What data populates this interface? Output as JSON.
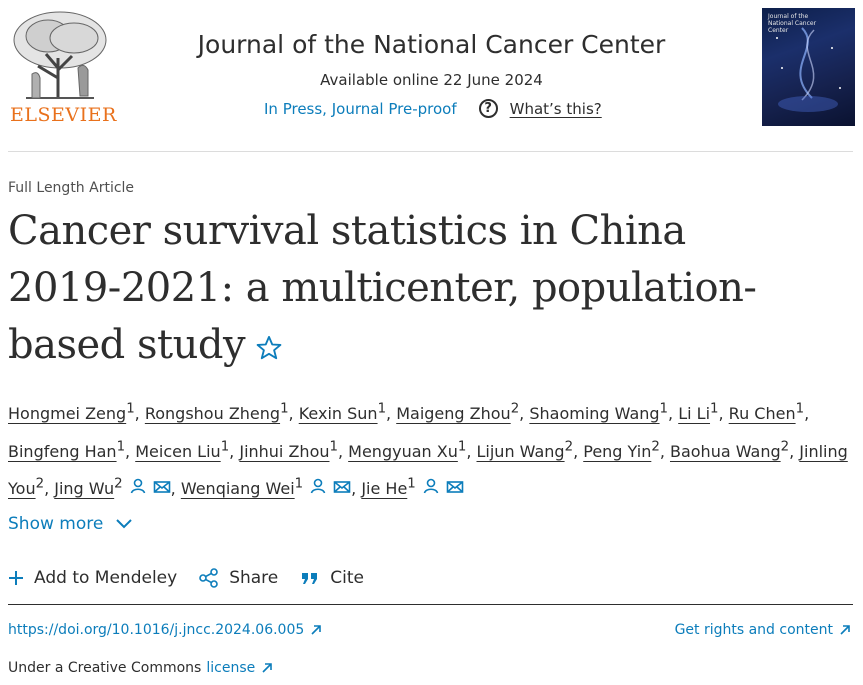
{
  "brand": {
    "publisher": "ELSEVIER",
    "colors": {
      "accent": "#0c7dbb",
      "publisher": "#e9711c",
      "text": "#2e2e2e"
    }
  },
  "header": {
    "journal_title": "Journal of the National Cancer Center",
    "available": "Available online 22 June 2024",
    "status_link": "In Press, Journal Pre-proof",
    "whats_this": "What’s this?",
    "cover_title": "Journal of the National Cancer Center"
  },
  "article": {
    "type": "Full Length Article",
    "title": "Cancer survival statistics in China 2019-2021: a multicenter, population-based study"
  },
  "authors": [
    {
      "name": "Hongmei Zeng",
      "sup": "1"
    },
    {
      "name": "Rongshou Zheng",
      "sup": "1"
    },
    {
      "name": "Kexin Sun",
      "sup": "1"
    },
    {
      "name": "Maigeng Zhou",
      "sup": "2"
    },
    {
      "name": "Shaoming Wang",
      "sup": "1"
    },
    {
      "name": "Li Li",
      "sup": "1"
    },
    {
      "name": "Ru Chen",
      "sup": "1"
    },
    {
      "name": "Bingfeng Han",
      "sup": "1"
    },
    {
      "name": "Meicen Liu",
      "sup": "1"
    },
    {
      "name": "Jinhui Zhou",
      "sup": "1"
    },
    {
      "name": "Mengyuan Xu",
      "sup": "1"
    },
    {
      "name": "Lijun Wang",
      "sup": "2"
    },
    {
      "name": "Peng Yin",
      "sup": "2"
    },
    {
      "name": "Baohua Wang",
      "sup": "2"
    },
    {
      "name": "Jinling You",
      "sup": "2"
    },
    {
      "name": "Jing Wu",
      "sup": "2",
      "icons": [
        "person-icon",
        "mail-icon"
      ]
    },
    {
      "name": "Wenqiang Wei",
      "sup": "1",
      "icons": [
        "person-icon",
        "mail-icon"
      ]
    },
    {
      "name": "Jie He",
      "sup": "1",
      "icons": [
        "person-icon",
        "mail-icon"
      ]
    }
  ],
  "show_more": "Show more",
  "actions": {
    "mendeley": "Add to Mendeley",
    "share": "Share",
    "cite": "Cite"
  },
  "links": {
    "doi": "https://doi.org/10.1016/j.jncc.2024.06.005",
    "rights": "Get rights and content",
    "cc_prefix": "Under a Creative Commons",
    "cc_link": "license"
  }
}
